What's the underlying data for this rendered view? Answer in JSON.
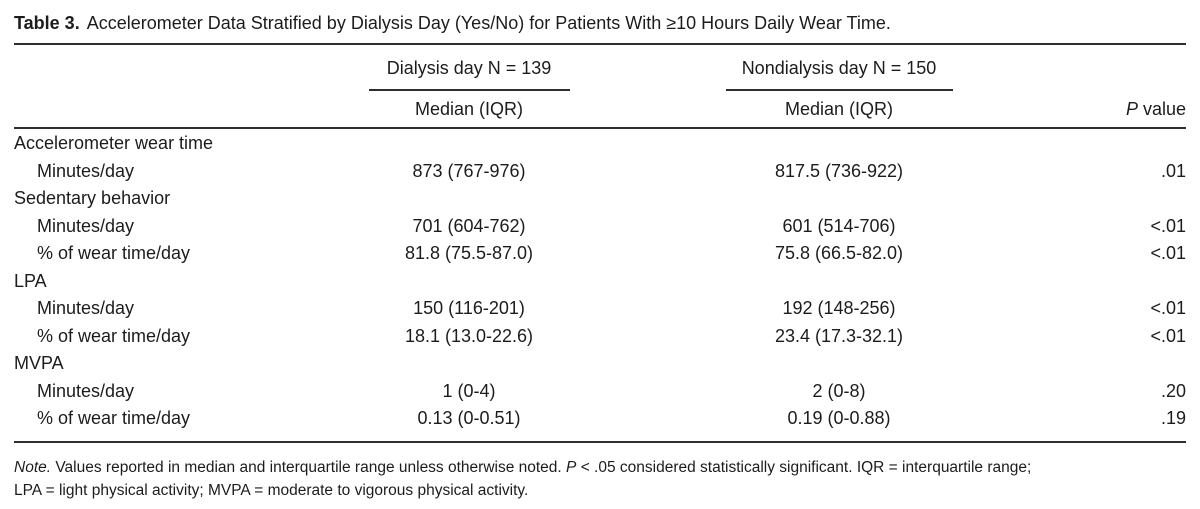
{
  "title": {
    "label": "Table 3.",
    "text": "Accelerometer Data Stratified by Dialysis Day (Yes/No) for Patients With ≥10 Hours Daily Wear Time."
  },
  "table": {
    "groups": [
      {
        "label": "Dialysis day N = 139",
        "subheader": "Median (IQR)"
      },
      {
        "label": "Nondialysis day N = 150",
        "subheader": "Median (IQR)"
      }
    ],
    "p_header": {
      "italic": "P",
      "rest": " value"
    },
    "rows": [
      {
        "label": "Accelerometer wear time",
        "indent": false,
        "dialysis": "",
        "nondialysis": "",
        "p_value": ""
      },
      {
        "label": "Minutes/day",
        "indent": true,
        "dialysis": "873 (767-976)",
        "nondialysis": "817.5 (736-922)",
        "p_value": ".01"
      },
      {
        "label": "Sedentary behavior",
        "indent": false,
        "dialysis": "",
        "nondialysis": "",
        "p_value": ""
      },
      {
        "label": "Minutes/day",
        "indent": true,
        "dialysis": "701 (604-762)",
        "nondialysis": "601 (514-706)",
        "p_value": "<.01"
      },
      {
        "label": "% of wear time/day",
        "indent": true,
        "dialysis": "81.8 (75.5-87.0)",
        "nondialysis": "75.8 (66.5-82.0)",
        "p_value": "<.01"
      },
      {
        "label": "LPA",
        "indent": false,
        "dialysis": "",
        "nondialysis": "",
        "p_value": ""
      },
      {
        "label": "Minutes/day",
        "indent": true,
        "dialysis": "150 (116-201)",
        "nondialysis": "192 (148-256)",
        "p_value": "<.01"
      },
      {
        "label": "% of wear time/day",
        "indent": true,
        "dialysis": "18.1 (13.0-22.6)",
        "nondialysis": "23.4 (17.3-32.1)",
        "p_value": "<.01"
      },
      {
        "label": "MVPA",
        "indent": false,
        "dialysis": "",
        "nondialysis": "",
        "p_value": ""
      },
      {
        "label": "Minutes/day",
        "indent": true,
        "dialysis": "1 (0-4)",
        "nondialysis": "2 (0-8)",
        "p_value": ".20"
      },
      {
        "label": "% of wear time/day",
        "indent": true,
        "dialysis": "0.13 (0-0.51)",
        "nondialysis": "0.19 (0-0.88)",
        "p_value": ".19"
      }
    ]
  },
  "note": {
    "label_italic": "Note.",
    "text_1": " Values reported in median and interquartile range unless otherwise noted. ",
    "p_italic": "P",
    "text_2": " < .05 considered statistically significant. IQR = interquartile range;",
    "line_2": "LPA = light physical activity; MVPA = moderate to vigorous physical activity."
  },
  "colors": {
    "text": "#1c1c1c",
    "rule": "#2e2e2e"
  }
}
